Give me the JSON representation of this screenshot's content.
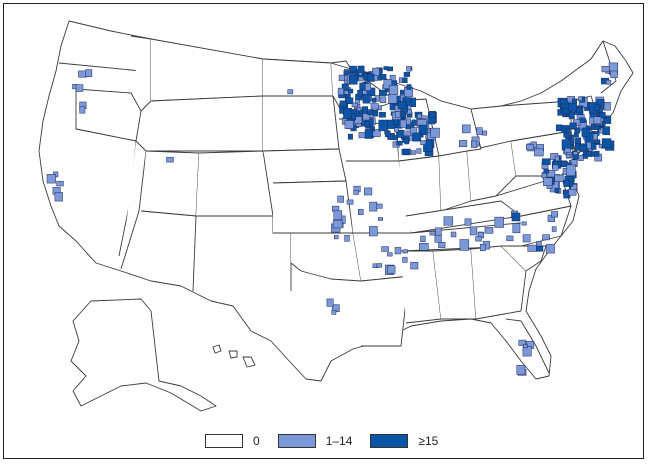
{
  "legend": {
    "items": [
      {
        "label": "0",
        "color": "#ffffff"
      },
      {
        "label": "1–14",
        "color": "#7b98d8"
      },
      {
        "label": "≥15",
        "color": "#0b55a6"
      }
    ]
  },
  "colors": {
    "none": "#ffffff",
    "low": "#7b98d8",
    "high": "#0b55a6",
    "border": "#3a3a3a"
  }
}
